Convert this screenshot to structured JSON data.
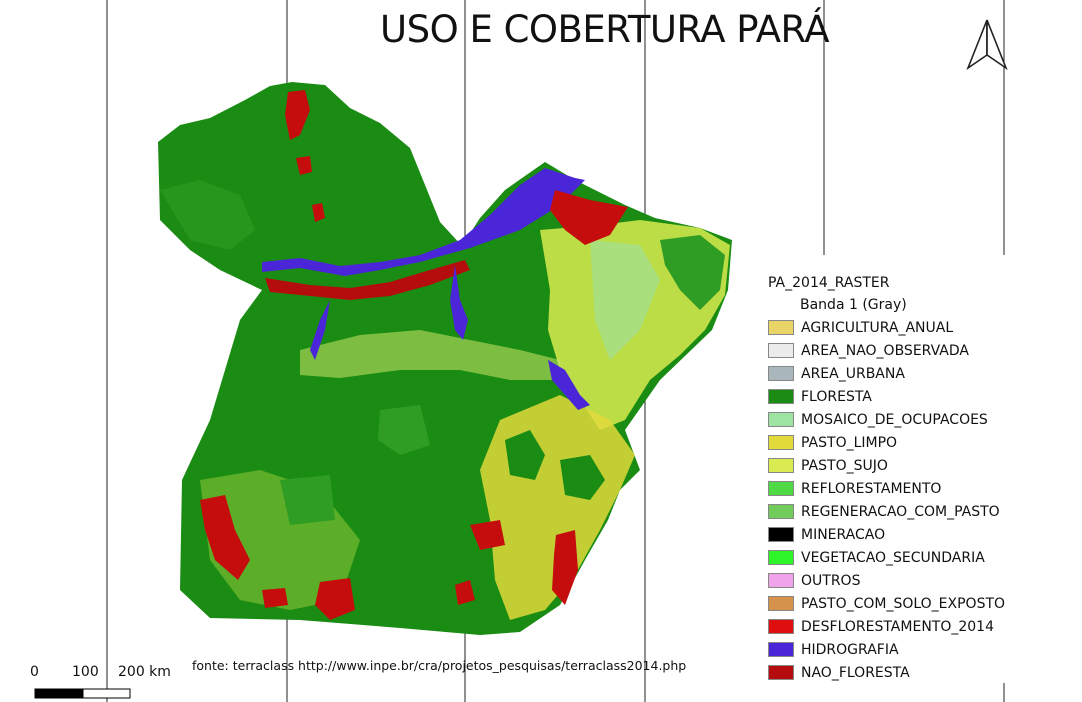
{
  "title": "USO E COBERTURA PARÁ",
  "source": "fonte: terraclass http://www.inpe.br/cra/projetos_pesquisas/terraclass2014.php",
  "scale_bar": {
    "labels": [
      "0",
      "100",
      "200 km"
    ]
  },
  "legend": {
    "layer_name": "PA_2014_RASTER",
    "band": "Banda 1 (Gray)",
    "items": [
      {
        "label": "AGRICULTURA_ANUAL",
        "color": "#e8d467"
      },
      {
        "label": "AREA_NAO_OBSERVADA",
        "color": "#ececec"
      },
      {
        "label": "AREA_URBANA",
        "color": "#a9b7bd"
      },
      {
        "label": "FLORESTA",
        "color": "#1a8c13"
      },
      {
        "label": "MOSAICO_DE_OCUPACOES",
        "color": "#9de3a2"
      },
      {
        "label": "PASTO_LIMPO",
        "color": "#e2d93b"
      },
      {
        "label": "PASTO_SUJO",
        "color": "#d9eb50"
      },
      {
        "label": "REFLORESTAMENTO",
        "color": "#4fd944"
      },
      {
        "label": "REGENERACAO_COM_PASTO",
        "color": "#72cc5c"
      },
      {
        "label": "MINERACAO",
        "color": "#000000"
      },
      {
        "label": "VEGETACAO_SECUNDARIA",
        "color": "#2ef52a"
      },
      {
        "label": "OUTROS",
        "color": "#f0a3e8"
      },
      {
        "label": "PASTO_COM_SOLO_EXPOSTO",
        "color": "#d4924a"
      },
      {
        "label": "DESFLORESTAMENTO_2014",
        "color": "#e00f0f"
      },
      {
        "label": "HIDROGRAFIA",
        "color": "#4b25d8"
      },
      {
        "label": "NAO_FLORESTA",
        "color": "#b50d0d"
      }
    ]
  },
  "north_arrow": {
    "icon": "north-arrow-icon"
  }
}
